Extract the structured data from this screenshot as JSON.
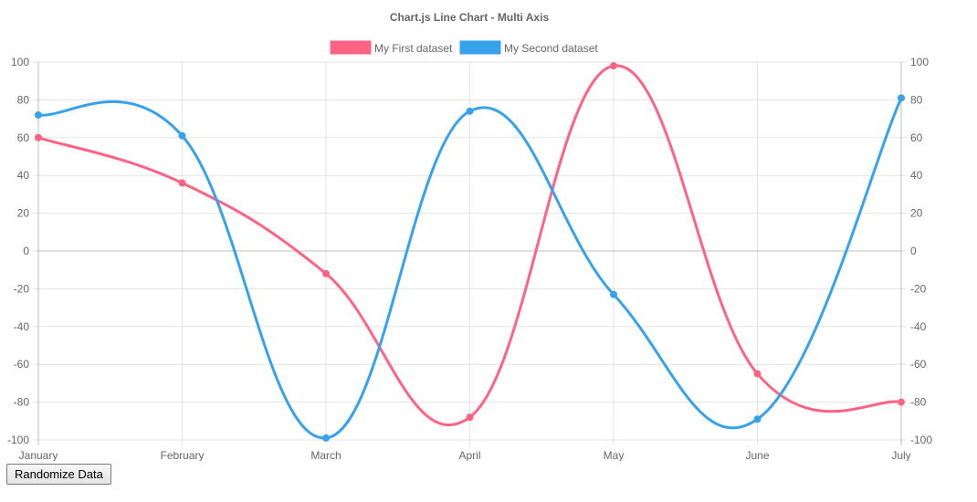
{
  "chart_data": {
    "type": "line",
    "title": "Chart.js Line Chart - Multi Axis",
    "categories": [
      "January",
      "February",
      "March",
      "April",
      "May",
      "June",
      "July"
    ],
    "series": [
      {
        "name": "My First dataset",
        "color": "#ff6384",
        "axis": "left",
        "values": [
          60,
          36,
          -12,
          -88,
          98,
          -65,
          -80
        ]
      },
      {
        "name": "My Second dataset",
        "color": "#36a2eb",
        "axis": "right",
        "values": [
          72,
          61,
          -99,
          74,
          -23,
          -89,
          81
        ]
      }
    ],
    "y_left": {
      "min": -100,
      "max": 100,
      "ticks": [
        100,
        80,
        60,
        40,
        20,
        0,
        -20,
        -40,
        -60,
        -80,
        -100
      ]
    },
    "y_right": {
      "min": -100,
      "max": 100,
      "ticks": [
        100,
        80,
        60,
        40,
        20,
        0,
        -20,
        -40,
        -60,
        -80,
        -100
      ]
    },
    "grid": true,
    "legend_position": "top"
  },
  "controls": {
    "randomize_label": "Randomize Data"
  }
}
